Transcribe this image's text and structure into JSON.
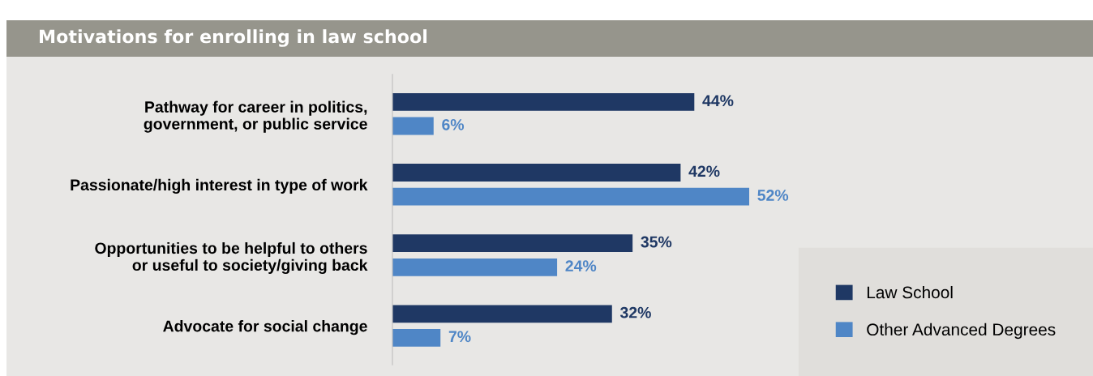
{
  "chart_data": {
    "type": "bar",
    "orientation": "horizontal",
    "title": "Motivations for enrolling in law school",
    "categories": [
      "Pathway for career in politics,\ngovernment, or public service",
      "Passionate/high interest in type of work",
      "Opportunities to be helpful to others\nor useful to society/giving back",
      "Advocate for social change"
    ],
    "series": [
      {
        "name": "Law School",
        "color": "#1f3864",
        "values": [
          44,
          42,
          35,
          32
        ],
        "value_labels": [
          "44%",
          "42%",
          "35%",
          "32%"
        ]
      },
      {
        "name": "Other Advanced Degrees",
        "color": "#4f86c6",
        "values": [
          6,
          52,
          24,
          7
        ],
        "value_labels": [
          "6%",
          "52%",
          "24%",
          "7%"
        ]
      }
    ],
    "tick_labels": "y",
    "grid": false,
    "legend": "bottom right"
  }
}
